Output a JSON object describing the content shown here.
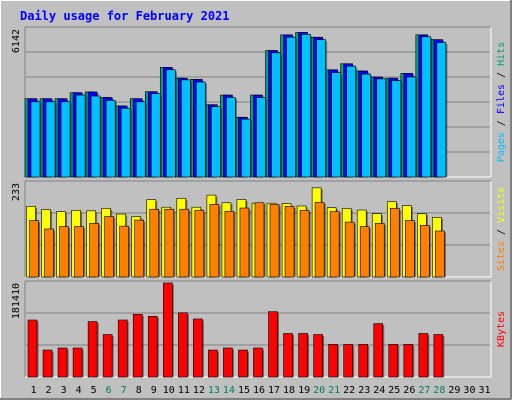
{
  "chart_data": [
    {
      "type": "bar",
      "title": "Daily usage for February 2021",
      "categories": [
        "1",
        "2",
        "3",
        "4",
        "5",
        "6",
        "7",
        "8",
        "9",
        "10",
        "11",
        "12",
        "13",
        "14",
        "15",
        "16",
        "17",
        "18",
        "19",
        "20",
        "21",
        "22",
        "23",
        "24",
        "25",
        "26",
        "27",
        "28",
        "29",
        "30",
        "31"
      ],
      "weekend_days": [
        "6",
        "7",
        "13",
        "14",
        "20",
        "21",
        "27",
        "28"
      ],
      "panels": [
        {
          "id": "hits-files-pages",
          "ymax_label": "6142",
          "ymax": 6142,
          "ylabel_parts": [
            "Pages",
            "Files",
            "Hits"
          ],
          "ylabel_colors": [
            "#00c0ff",
            "#0000ff",
            "#00a080"
          ],
          "series": [
            {
              "name": "Hits",
              "color": "#00a080",
              "values": [
                3250,
                3250,
                3250,
                3500,
                3530,
                3300,
                2950,
                3250,
                3540,
                4550,
                4100,
                4050,
                3000,
                3400,
                2480,
                3400,
                5250,
                5900,
                6000,
                5800,
                4450,
                4700,
                4400,
                4150,
                4100,
                4300,
                5900,
                5700,
                0,
                0,
                0
              ]
            },
            {
              "name": "Files",
              "color": "#0000ff",
              "values": [
                3250,
                3250,
                3250,
                3500,
                3530,
                3300,
                2950,
                3250,
                3540,
                4550,
                4100,
                4050,
                3000,
                3400,
                2480,
                3400,
                5250,
                5900,
                6000,
                5800,
                4450,
                4700,
                4400,
                4150,
                4100,
                4300,
                5900,
                5700,
                0,
                0,
                0
              ]
            },
            {
              "name": "Pages",
              "color": "#00c0ff",
              "values": [
                3120,
                3120,
                3120,
                3400,
                3360,
                3180,
                2850,
                3120,
                3460,
                4450,
                4030,
                3940,
                2920,
                3300,
                2400,
                3300,
                5150,
                5800,
                5920,
                5700,
                4330,
                4600,
                4270,
                4070,
                4000,
                4150,
                5820,
                5580,
                0,
                0,
                0
              ]
            }
          ]
        },
        {
          "id": "visits-sites",
          "ymax_label": "233",
          "ymax": 233,
          "ylabel_parts": [
            "Sites",
            "Visits"
          ],
          "ylabel_colors": [
            "#ff8000",
            "#ffff00"
          ],
          "series": [
            {
              "name": "Visits",
              "color": "#ffff00",
              "values": [
                175,
                167,
                162,
                165,
                164,
                170,
                156,
                150,
                192,
                173,
                195,
                173,
                203,
                184,
                192,
                183,
                183,
                182,
                176,
                221,
                172,
                170,
                166,
                157,
                187,
                177,
                157,
                148,
                0,
                0,
                0
              ]
            },
            {
              "name": "Sites",
              "color": "#ff8000",
              "values": [
                140,
                119,
                125,
                125,
                133,
                150,
                126,
                141,
                168,
                168,
                168,
                165,
                180,
                163,
                171,
                184,
                180,
                175,
                165,
                185,
                162,
                136,
                125,
                133,
                170,
                140,
                128,
                114,
                0,
                0,
                0
              ]
            }
          ]
        },
        {
          "id": "kbytes",
          "ymax_label": "181410",
          "ymax": 181410,
          "ylabel_parts": [
            "KBytes"
          ],
          "ylabel_colors": [
            "#ff0000"
          ],
          "series": [
            {
              "name": "KBytes",
              "color": "#ff0000",
              "values": [
                110000,
                52000,
                56000,
                56000,
                107000,
                82000,
                110000,
                121000,
                117000,
                181410,
                124000,
                112000,
                52000,
                56000,
                52000,
                56000,
                126000,
                84000,
                84000,
                82000,
                63000,
                63000,
                63000,
                103000,
                63000,
                63000,
                84000,
                82000,
                0,
                0,
                0
              ]
            }
          ]
        }
      ]
    }
  ],
  "colors": {
    "background": "#c0c0c0",
    "plot_background": "#c0c0c0",
    "grid": "#808080",
    "title": "#0000ff",
    "weekday_label": "#000000",
    "weekend_label": "#00805c"
  }
}
